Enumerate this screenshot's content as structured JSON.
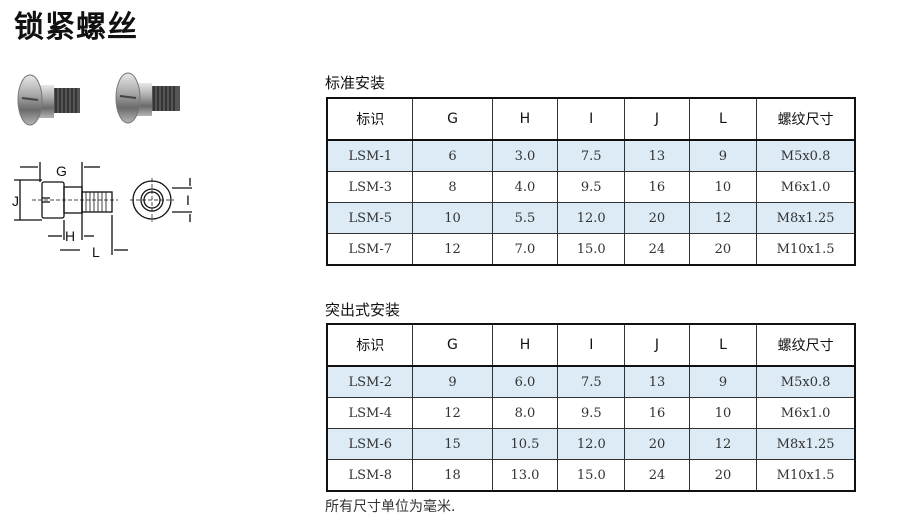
{
  "title": "锁紧螺丝",
  "diagram": {
    "labels": {
      "G": "G",
      "H": "H",
      "J": "J",
      "L": "L",
      "I": "I"
    }
  },
  "tables": [
    {
      "title": "标准安装",
      "headers": [
        "标识",
        "G",
        "H",
        "I",
        "J",
        "L",
        "螺纹尺寸"
      ],
      "rows": [
        [
          "LSM-1",
          "6",
          "3.0",
          "7.5",
          "13",
          "9",
          "M5x0.8"
        ],
        [
          "LSM-3",
          "8",
          "4.0",
          "9.5",
          "16",
          "10",
          "M6x1.0"
        ],
        [
          "LSM-5",
          "10",
          "5.5",
          "12.0",
          "20",
          "12",
          "M8x1.25"
        ],
        [
          "LSM-7",
          "12",
          "7.0",
          "15.0",
          "24",
          "20",
          "M10x1.5"
        ]
      ]
    },
    {
      "title": "突出式安装",
      "headers": [
        "标识",
        "G",
        "H",
        "I",
        "J",
        "L",
        "螺纹尺寸"
      ],
      "rows": [
        [
          "LSM-2",
          "9",
          "6.0",
          "7.5",
          "13",
          "9",
          "M5x0.8"
        ],
        [
          "LSM-4",
          "12",
          "8.0",
          "9.5",
          "16",
          "10",
          "M6x1.0"
        ],
        [
          "LSM-6",
          "15",
          "10.5",
          "12.0",
          "20",
          "12",
          "M8x1.25"
        ],
        [
          "LSM-8",
          "18",
          "13.0",
          "15.0",
          "24",
          "20",
          "M10x1.5"
        ]
      ]
    }
  ],
  "note": "所有尺寸单位为毫米.",
  "colors": {
    "row_shade": "#dcebf6",
    "border": "#111111"
  }
}
